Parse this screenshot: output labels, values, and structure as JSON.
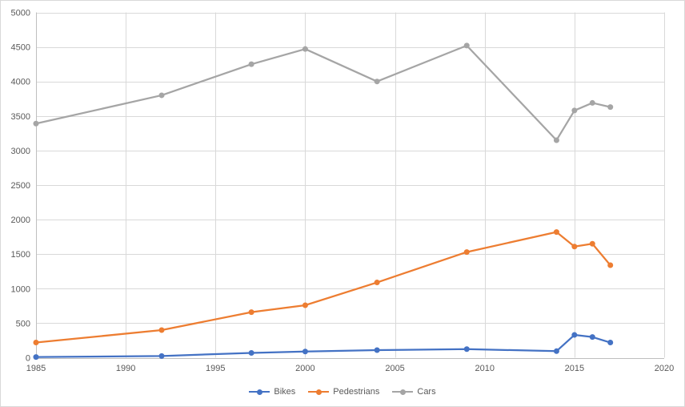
{
  "chart_data": {
    "type": "line",
    "x": [
      1985,
      1992,
      1997,
      2000,
      2004,
      2009,
      2014,
      2015,
      2016,
      2017
    ],
    "series": [
      {
        "name": "Bikes",
        "color": "#4472C4",
        "values": [
          10,
          25,
          70,
          90,
          110,
          125,
          95,
          330,
          300,
          220
        ]
      },
      {
        "name": "Pedestrians",
        "color": "#ED7D31",
        "values": [
          220,
          400,
          660,
          760,
          1090,
          1530,
          1820,
          1610,
          1650,
          1340
        ]
      },
      {
        "name": "Cars",
        "color": "#A5A5A5",
        "values": [
          3390,
          3800,
          4250,
          4470,
          4000,
          4520,
          3150,
          3580,
          3690,
          3630
        ]
      }
    ],
    "title": "",
    "xlabel": "",
    "ylabel": "",
    "xlim": [
      1985,
      2020
    ],
    "ylim": [
      0,
      5000
    ],
    "x_ticks": [
      1985,
      1990,
      1995,
      2000,
      2005,
      2010,
      2015,
      2020
    ],
    "y_ticks": [
      0,
      500,
      1000,
      1500,
      2000,
      2500,
      3000,
      3500,
      4000,
      4500,
      5000
    ],
    "grid": true,
    "legend_position": "bottom",
    "style": {
      "grid_color": "#d9d9d9",
      "axis_color": "#bfbfbf",
      "label_color": "#595959",
      "background": "#ffffff",
      "border_color": "#d9d9d9"
    }
  }
}
